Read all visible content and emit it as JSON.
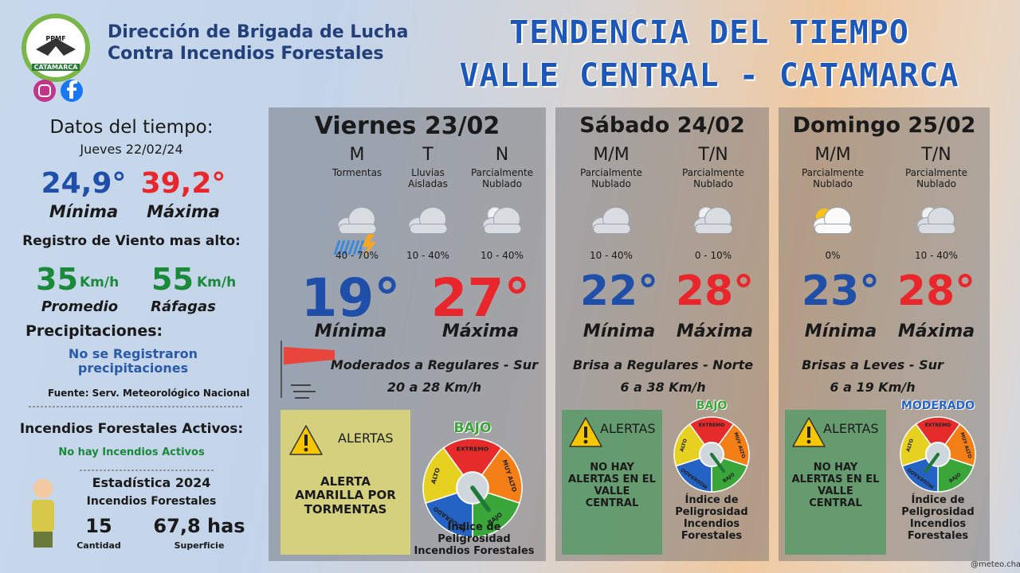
{
  "header": {
    "logo_top": "PPMF",
    "logo_bottom": "CATAMARCA",
    "org_line1": "Dirección de Brigada de Lucha",
    "org_line2": "Contra Incendios Forestales",
    "title_line1": "TENDENCIA DEL TIEMPO",
    "title_line2": "VALLE CENTRAL - CATAMARCA"
  },
  "summary": {
    "title": "Datos del tiempo:",
    "date": "Jueves 22/02/24",
    "min_value": "24,9°",
    "min_label": "Mínima",
    "max_value": "39,2°",
    "max_label": "Máxima",
    "wind_title": "Registro de Viento mas alto:",
    "wind_avg": "35",
    "wind_avg_unit": "Km/h",
    "wind_avg_label": "Promedio",
    "wind_gust": "55",
    "wind_gust_unit": "Km/h",
    "wind_gust_label": "Ráfagas",
    "precip_title": "Precipitaciones:",
    "precip_text": "No se Registraron precipitaciones",
    "source": "Fuente: Serv. Meteorológico Nacional",
    "fires_title": "Incendios Forestales Activos:",
    "fires_text": "No hay Incendios Activos",
    "stats_title": "Estadística 2024",
    "stats_subtitle": "Incendios Forestales",
    "count": "15",
    "count_label": "Cantidad",
    "area": "67,8 has",
    "area_label": "Superficie"
  },
  "gauge_labels": [
    "EXTREMO",
    "MUY ALTO",
    "BAJO",
    "MODERADO",
    "ALTO"
  ],
  "days": [
    {
      "name": "Viernes 23/02",
      "periods": [
        {
          "label": "M",
          "desc": "Tormentas",
          "prob": "40 - 70%"
        },
        {
          "label": "T",
          "desc": "Lluvias Aisladas",
          "prob": "10 - 40%"
        },
        {
          "label": "N",
          "desc": "Parcialmente Nublado",
          "prob": "10 - 40%"
        }
      ],
      "min": "19°",
      "min_label": "Mínima",
      "max": "27°",
      "max_label": "Máxima",
      "wind_desc": "Moderados a Regulares - Sur",
      "wind_speed": "20 a 28 Km/h",
      "alert_title": "ALERTAS",
      "alert_text": "ALERTA AMARILLA POR TORMENTAS",
      "danger_level": "BAJO",
      "danger_caption": "Índice de Peligrosidad Incendios Forestales"
    },
    {
      "name": "Sábado 24/02",
      "periods": [
        {
          "label": "M/M",
          "desc": "Parcialmente Nublado",
          "prob": "10 - 40%"
        },
        {
          "label": "T/N",
          "desc": "Parcialmente Nublado",
          "prob": "0 - 10%"
        }
      ],
      "min": "22°",
      "min_label": "Mínima",
      "max": "28°",
      "max_label": "Máxima",
      "wind_desc": "Brisa a Regulares - Norte",
      "wind_speed": "6 a 38 Km/h",
      "alert_title": "ALERTAS",
      "alert_text": "NO HAY ALERTAS EN EL VALLE CENTRAL",
      "danger_level": "BAJO",
      "danger_caption": "Índice de Peligrosidad Incendios Forestales"
    },
    {
      "name": "Domingo 25/02",
      "periods": [
        {
          "label": "M/M",
          "desc": "Parcialmente Nublado",
          "prob": "0%"
        },
        {
          "label": "T/N",
          "desc": "Parcialmente Nublado",
          "prob": "10 - 40%"
        }
      ],
      "min": "23°",
      "min_label": "Mínima",
      "max": "28°",
      "max_label": "Máxima",
      "wind_desc": "Brisas a Leves - Sur",
      "wind_speed": "6 a 19 Km/h",
      "alert_title": "ALERTAS",
      "alert_text": "NO HAY ALERTAS EN EL VALLE CENTRAL",
      "danger_level": "MODERADO",
      "danger_caption": "Índice de Peligrosidad Incendios Forestales"
    }
  ],
  "credit": "@meteo.charly"
}
